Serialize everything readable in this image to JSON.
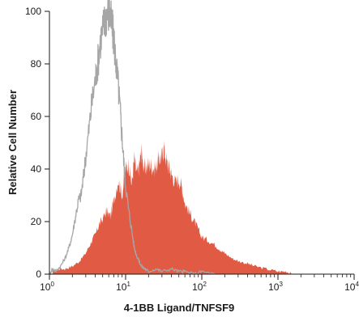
{
  "chart_data": {
    "type": "area",
    "title": "",
    "xlabel": "4-1BB Ligand/TNFSF9",
    "ylabel": "Relative Cell Number",
    "xscale": "log",
    "xlim": [
      1,
      10000
    ],
    "ylim": [
      0,
      100
    ],
    "x_ticks": [
      {
        "base": "10",
        "exp": "0"
      },
      {
        "base": "10",
        "exp": "1"
      },
      {
        "base": "10",
        "exp": "2"
      },
      {
        "base": "10",
        "exp": "3"
      },
      {
        "base": "10",
        "exp": "4"
      }
    ],
    "y_ticks": [
      "0",
      "20",
      "40",
      "60",
      "80",
      "100"
    ],
    "grid": false,
    "legend": "none",
    "series": [
      {
        "style": "filled",
        "color": "#e05a44",
        "x": [
          1.1,
          1.3,
          1.6,
          2.0,
          2.5,
          3.0,
          3.5,
          4.0,
          4.5,
          5.0,
          5.6,
          6.3,
          7.0,
          8.0,
          9.0,
          10,
          11,
          12,
          13,
          14,
          15,
          16,
          17,
          18,
          20,
          22,
          24,
          26,
          28,
          30,
          32,
          35,
          38,
          40,
          45,
          50,
          55,
          60,
          70,
          80,
          90,
          100,
          120,
          150,
          180,
          200,
          250,
          300,
          400,
          500,
          700,
          1000,
          1300,
          1500
        ],
        "values": [
          1,
          2,
          2,
          3,
          5,
          8,
          12,
          15,
          19,
          21,
          24,
          22,
          28,
          36,
          30,
          40,
          42,
          34,
          44,
          38,
          41,
          47,
          42,
          40,
          42,
          41,
          40,
          42,
          44,
          45,
          48,
          42,
          40,
          38,
          35,
          36,
          33,
          27,
          23,
          20,
          17,
          14,
          13,
          11,
          9,
          8,
          6,
          5,
          4,
          3,
          2,
          1,
          1,
          0
        ]
      },
      {
        "style": "outline",
        "color": "#a6a6a6",
        "x": [
          1.0,
          1.1,
          1.2,
          1.4,
          1.6,
          1.8,
          2.0,
          2.2,
          2.4,
          2.6,
          2.8,
          3.0,
          3.3,
          3.6,
          4.0,
          4.3,
          4.6,
          5.0,
          5.3,
          5.6,
          6.0,
          6.3,
          6.6,
          7.0,
          7.5,
          8.0,
          8.5,
          9.0,
          9.5,
          10,
          11,
          12,
          13,
          14,
          15,
          16,
          18,
          20,
          25,
          30,
          40,
          50,
          60,
          80,
          100,
          150
        ],
        "values": [
          0,
          2,
          1,
          3,
          6,
          10,
          15,
          22,
          28,
          30,
          37,
          45,
          55,
          65,
          74,
          80,
          88,
          93,
          96,
          99,
          100,
          98,
          94,
          90,
          80,
          72,
          62,
          52,
          42,
          34,
          24,
          17,
          10,
          7,
          5,
          3,
          2,
          1,
          2,
          1,
          2,
          1,
          1,
          0,
          1,
          0
        ]
      }
    ]
  }
}
